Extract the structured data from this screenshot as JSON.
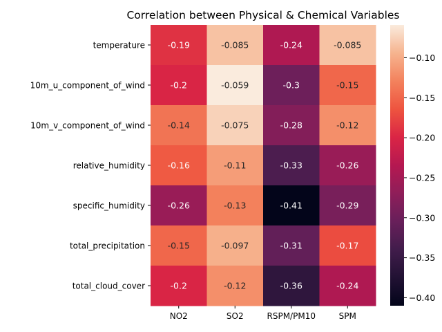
{
  "chart_data": {
    "type": "heatmap",
    "title": "Correlation between Physical & Chemical Variables",
    "xlabel": "",
    "ylabel": "",
    "x_categories": [
      "NO2",
      "SO2",
      "RSPM/PM10",
      "SPM"
    ],
    "y_categories": [
      "temperature",
      "10m_u_component_of_wind",
      "10m_v_component_of_wind",
      "relative_humidity",
      "specific_humidity",
      "total_precipitation",
      "total_cloud_cover"
    ],
    "values": [
      [
        -0.19,
        -0.085,
        -0.24,
        -0.085
      ],
      [
        -0.2,
        -0.059,
        -0.3,
        -0.15
      ],
      [
        -0.14,
        -0.075,
        -0.28,
        -0.12
      ],
      [
        -0.16,
        -0.11,
        -0.33,
        -0.26
      ],
      [
        -0.26,
        -0.13,
        -0.41,
        -0.29
      ],
      [
        -0.15,
        -0.097,
        -0.31,
        -0.17
      ],
      [
        -0.2,
        -0.12,
        -0.36,
        -0.24
      ]
    ],
    "value_labels": [
      [
        "-0.19",
        "-0.085",
        "-0.24",
        "-0.085"
      ],
      [
        "-0.2",
        "-0.059",
        "-0.3",
        "-0.15"
      ],
      [
        "-0.14",
        "-0.075",
        "-0.28",
        "-0.12"
      ],
      [
        "-0.16",
        "-0.11",
        "-0.33",
        "-0.26"
      ],
      [
        "-0.26",
        "-0.13",
        "-0.41",
        "-0.29"
      ],
      [
        "-0.15",
        "-0.097",
        "-0.31",
        "-0.17"
      ],
      [
        "-0.2",
        "-0.12",
        "-0.36",
        "-0.24"
      ]
    ],
    "colormap": "rocket",
    "colorbar": {
      "range": [
        -0.41,
        -0.059
      ],
      "ticks": [
        -0.1,
        -0.15,
        -0.2,
        -0.25,
        -0.3,
        -0.35,
        -0.4
      ],
      "tick_labels": [
        "−0.10",
        "−0.15",
        "−0.20",
        "−0.25",
        "−0.30",
        "−0.35",
        "−0.40"
      ]
    },
    "grid": false,
    "legend": "colorbar-right"
  }
}
